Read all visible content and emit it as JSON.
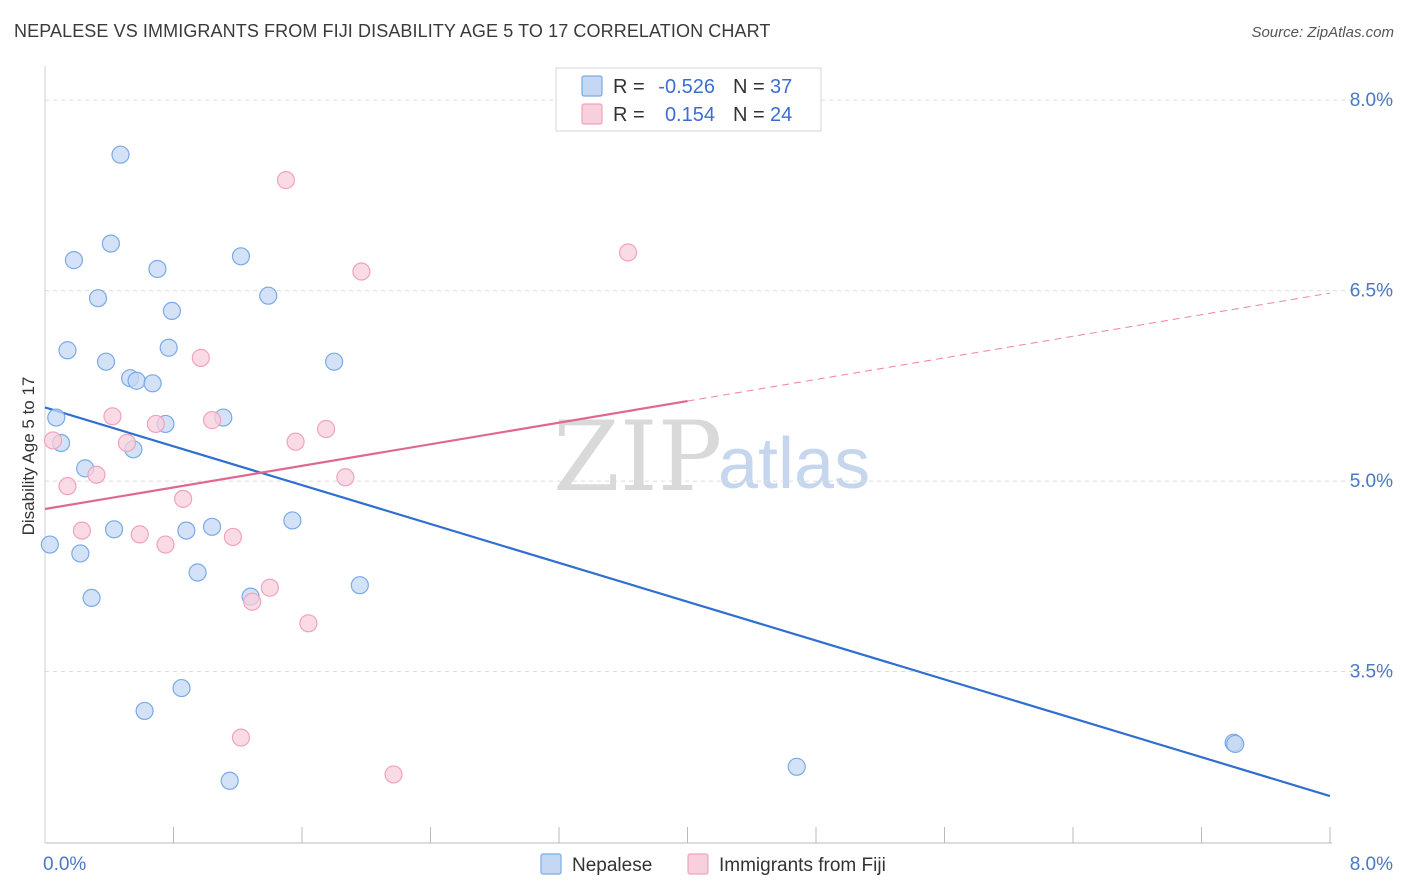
{
  "title": "NEPALESE VS IMMIGRANTS FROM FIJI DISABILITY AGE 5 TO 17 CORRELATION CHART",
  "source": "Source: ZipAtlas.com",
  "watermark": {
    "zip": "ZIP",
    "atlas": "atlas"
  },
  "chart_data": {
    "type": "scatter",
    "ylabel": "Disability Age 5 to 17",
    "xlim": [
      0,
      8
    ],
    "ylim": [
      2.15,
      8.3
    ],
    "x_tick_labels": [
      {
        "value": 0,
        "label": "0.0%"
      },
      {
        "value": 8,
        "label": "8.0%"
      }
    ],
    "y_tick_labels": [
      {
        "value": 8.0,
        "label": "8.0%"
      },
      {
        "value": 6.5,
        "label": "6.5%"
      },
      {
        "value": 5.0,
        "label": "5.0%"
      },
      {
        "value": 3.5,
        "label": "3.5%"
      }
    ],
    "grid": true,
    "legend_position": "top-center",
    "series": [
      {
        "name": "Nepalese",
        "color": "#7aaae8",
        "fill": "#c4d8f4",
        "line_color": "#2f6fd0",
        "R": "-0.526",
        "N": "37",
        "trend": {
          "x0": 0.0,
          "y0": 5.58,
          "x1": 8.0,
          "y1": 2.52,
          "solid_until": 8.0
        },
        "points": [
          [
            0.47,
            7.57
          ],
          [
            0.41,
            6.87
          ],
          [
            0.18,
            6.74
          ],
          [
            0.7,
            6.67
          ],
          [
            1.22,
            6.77
          ],
          [
            0.33,
            6.44
          ],
          [
            0.79,
            6.34
          ],
          [
            1.39,
            6.46
          ],
          [
            0.14,
            6.03
          ],
          [
            0.38,
            5.94
          ],
          [
            0.77,
            6.05
          ],
          [
            0.53,
            5.81
          ],
          [
            0.57,
            5.79
          ],
          [
            0.67,
            5.77
          ],
          [
            1.8,
            5.94
          ],
          [
            0.07,
            5.5
          ],
          [
            0.1,
            5.3
          ],
          [
            0.75,
            5.45
          ],
          [
            1.11,
            5.5
          ],
          [
            0.55,
            5.25
          ],
          [
            0.25,
            5.1
          ],
          [
            1.54,
            4.69
          ],
          [
            0.43,
            4.62
          ],
          [
            0.88,
            4.61
          ],
          [
            1.04,
            4.64
          ],
          [
            0.03,
            4.5
          ],
          [
            0.22,
            4.43
          ],
          [
            0.95,
            4.28
          ],
          [
            1.96,
            4.18
          ],
          [
            0.29,
            4.08
          ],
          [
            1.28,
            4.09
          ],
          [
            0.85,
            3.37
          ],
          [
            0.62,
            3.19
          ],
          [
            1.15,
            2.64
          ],
          [
            4.68,
            2.75
          ],
          [
            7.4,
            2.94
          ],
          [
            7.41,
            2.93
          ]
        ]
      },
      {
        "name": "Immigrants from Fiji",
        "color": "#f0a3bd",
        "fill": "#f8cfdc",
        "line_color": "#e0678f",
        "R": "0.154",
        "N": "24",
        "trend": {
          "x0": 0.0,
          "y0": 4.78,
          "x1": 8.0,
          "y1": 6.48,
          "solid_until": 4.0
        },
        "points": [
          [
            1.5,
            7.37
          ],
          [
            3.63,
            6.8
          ],
          [
            1.97,
            6.65
          ],
          [
            0.97,
            5.97
          ],
          [
            0.42,
            5.51
          ],
          [
            0.69,
            5.45
          ],
          [
            1.04,
            5.48
          ],
          [
            1.75,
            5.41
          ],
          [
            0.51,
            5.3
          ],
          [
            1.56,
            5.31
          ],
          [
            0.05,
            5.32
          ],
          [
            0.32,
            5.05
          ],
          [
            1.87,
            5.03
          ],
          [
            0.14,
            4.96
          ],
          [
            0.86,
            4.86
          ],
          [
            0.23,
            4.61
          ],
          [
            0.59,
            4.58
          ],
          [
            1.17,
            4.56
          ],
          [
            0.75,
            4.5
          ],
          [
            1.4,
            4.16
          ],
          [
            1.29,
            4.05
          ],
          [
            1.64,
            3.88
          ],
          [
            1.22,
            2.98
          ],
          [
            2.17,
            2.69
          ]
        ]
      }
    ]
  }
}
